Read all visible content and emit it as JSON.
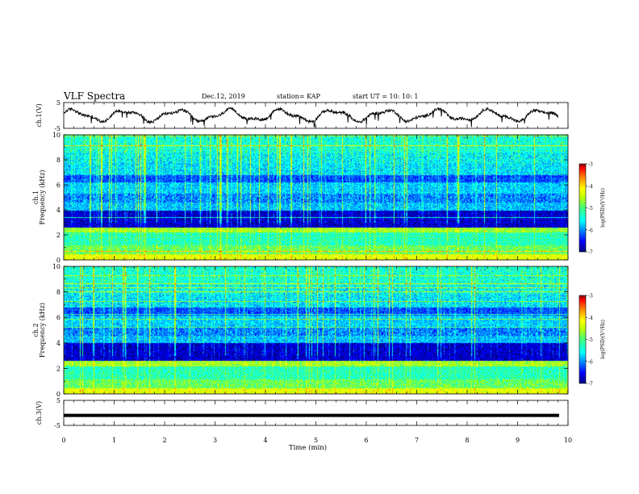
{
  "header": {
    "title": "VLF Spectra",
    "date": "Dec.12, 2019",
    "station": "station= KAP",
    "start_ut": "start  UT =    10: 10: 1"
  },
  "chart_data": [
    {
      "type": "line",
      "panel": "ch1-waveform",
      "ylabel": "ch.1(V)",
      "yticks": [
        "5",
        "-5"
      ],
      "ylim": [
        -5,
        5
      ],
      "xlim": [
        0,
        10
      ],
      "series_shape": "noisy slow oscillation between about -2.5 and 2.5 V"
    },
    {
      "type": "heatmap",
      "panel": "ch1-spectrogram",
      "ylabel": "ch.1 Frequency (kHz)",
      "ylim": [
        0,
        10
      ],
      "yticks": [
        "0",
        "2",
        "4",
        "6",
        "8",
        "10"
      ],
      "xlim": [
        0,
        10
      ],
      "colorbar": {
        "label": "log(PSD)(V²/Hz)",
        "range": [
          -7,
          -3
        ],
        "ticks": [
          "-3",
          "-4",
          "-5",
          "-6",
          "-7"
        ]
      }
    },
    {
      "type": "heatmap",
      "panel": "ch2-spectrogram",
      "ylabel": "ch.2 Frequency (kHz)",
      "ylim": [
        0,
        10
      ],
      "yticks": [
        "0",
        "2",
        "4",
        "6",
        "8",
        "10"
      ],
      "xlim": [
        0,
        10
      ],
      "colorbar": {
        "label": "log(PSD)(V²/Hz)",
        "range": [
          -7,
          -3
        ],
        "ticks": [
          "-3",
          "-4",
          "-5",
          "-6",
          "-7"
        ]
      }
    },
    {
      "type": "line",
      "panel": "ch3-waveform",
      "ylabel": "ch.3(V)",
      "yticks": [
        "5",
        "-5"
      ],
      "ylim": [
        -5,
        5
      ],
      "xlim": [
        0,
        10
      ],
      "series_shape": "flat, approximately -1 V"
    }
  ],
  "x_axis": {
    "label": "Time (min)",
    "ticks": [
      "0",
      "1",
      "2",
      "3",
      "4",
      "5",
      "6",
      "7",
      "8",
      "9",
      "10"
    ]
  },
  "colors": {
    "line": "#000000",
    "colormap": [
      "#00007f",
      "#0000ff",
      "#0080ff",
      "#00ffff",
      "#40ff80",
      "#c0ff00",
      "#ffff00",
      "#ff8000",
      "#ff0000",
      "#7f0000"
    ]
  }
}
